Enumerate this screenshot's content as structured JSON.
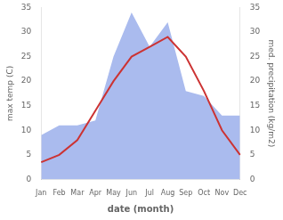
{
  "chart_data": {
    "type": "line",
    "xlabel": "date (month)",
    "ylabel": "max temp (C)",
    "y2label": "med. precipitation (kg/m2)",
    "categories": [
      "Jan",
      "Feb",
      "Mar",
      "Apr",
      "May",
      "Jun",
      "Jul",
      "Aug",
      "Sep",
      "Oct",
      "Nov",
      "Dec"
    ],
    "series": [
      {
        "type": "area",
        "color": "#aabbee",
        "axis": "y2",
        "values": [
          9.0,
          11.0,
          11.0,
          12.0,
          25.0,
          34.0,
          27.0,
          32.0,
          18.0,
          17.0,
          13.0,
          13.0
        ]
      },
      {
        "type": "line",
        "color": "#cc3333",
        "values": [
          3.5,
          5.0,
          8.0,
          14.0,
          20.0,
          25.0,
          27.0,
          29.0,
          25.0,
          18.0,
          10.0,
          5.0
        ]
      }
    ],
    "ylim": [
      0,
      35
    ],
    "yticks": [
      0,
      5,
      10,
      15,
      20,
      25,
      30,
      35
    ],
    "y2lim": [
      0,
      35
    ],
    "y2ticks": [
      0,
      5,
      10,
      15,
      20,
      25,
      30,
      35
    ],
    "grid": false
  }
}
